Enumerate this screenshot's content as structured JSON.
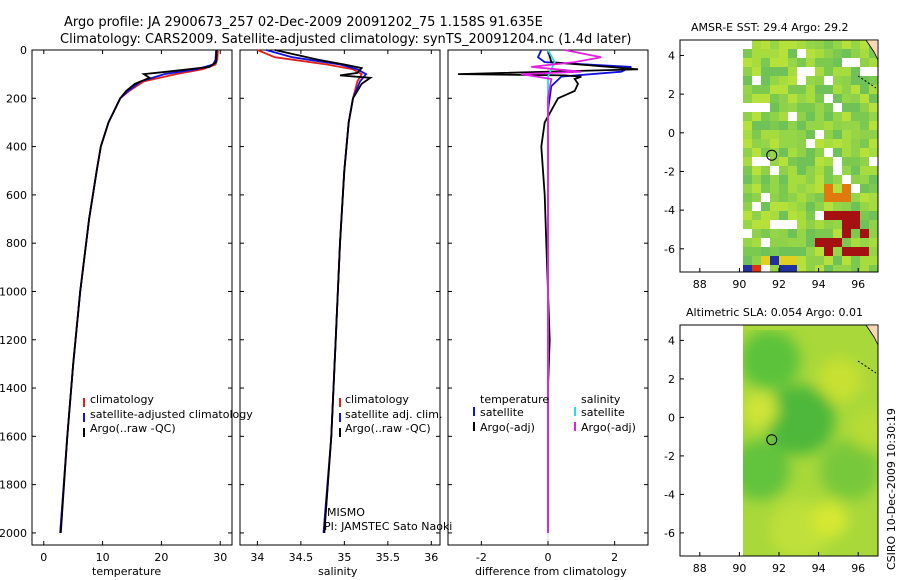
{
  "title_line1": "Argo profile: JA 2900673_257 02-Dec-2009 20091202_75 1.158S 91.635E",
  "title_line2": "Climatology: CARS2009. Satellite-adjusted climatology: synTS_20091204.nc (1.4d later)",
  "credit": "CSIRO 10-Dec-2009 10:30:19",
  "project_label": "MISMO",
  "pi_label": "PI: JAMSTEC Sato Naoki",
  "colors": {
    "red": "#e0201b",
    "blue": "#1010e0",
    "black": "#000000",
    "cyan": "#20e0f0",
    "magenta": "#e020e0",
    "land": "#f7d7b5"
  },
  "depth_ticks": [
    "0",
    "200",
    "400",
    "600",
    "800",
    "1000",
    "1200",
    "1400",
    "1600",
    "1800",
    "2000"
  ],
  "chart_data": [
    {
      "type": "line",
      "id": "temperature",
      "xlabel": "temperature",
      "ylabel": "",
      "xlim": [
        -2,
        32
      ],
      "ylim": [
        2050,
        0
      ],
      "xticks": [
        "0",
        "10",
        "20",
        "30"
      ],
      "legend": [
        "climatology",
        "satellite-adjusted climatology",
        "Argo(..raw -QC)"
      ],
      "series": [
        {
          "name": "climatology",
          "color": "red",
          "depth": [
            0,
            40,
            60,
            80,
            100,
            130,
            170,
            200,
            250,
            300,
            400,
            500,
            700,
            1000,
            1300,
            1600,
            2000
          ],
          "values": [
            29.6,
            29.5,
            29.2,
            27,
            22.5,
            17,
            14.5,
            13,
            12,
            11,
            9.7,
            9,
            7.7,
            6.2,
            5,
            4,
            2.8
          ]
        },
        {
          "name": "satellite-adjusted climatology",
          "color": "blue",
          "depth": [
            0,
            40,
            60,
            80,
            100,
            130,
            170,
            200,
            250,
            300,
            400,
            500,
            700,
            1000,
            1300,
            1600,
            2000
          ],
          "values": [
            29.3,
            29.2,
            28.8,
            26,
            20.5,
            16.5,
            14.3,
            13,
            12,
            11,
            9.7,
            9,
            7.7,
            6.2,
            5,
            4,
            2.8
          ]
        },
        {
          "name": "Argo(..raw -QC)",
          "color": "black",
          "depth": [
            0,
            50,
            70,
            90,
            100,
            115,
            140,
            170,
            200,
            250,
            300,
            400,
            500,
            700,
            1000,
            1300,
            1600,
            2000
          ],
          "values": [
            29.4,
            29.3,
            28.2,
            21,
            17,
            18,
            15.5,
            14,
            13,
            12,
            11,
            9.7,
            9,
            7.7,
            6.2,
            5,
            4,
            2.9
          ]
        }
      ]
    },
    {
      "type": "line",
      "id": "salinity",
      "xlabel": "salinity",
      "ylabel": "",
      "xlim": [
        33.8,
        36.1
      ],
      "ylim": [
        2050,
        0
      ],
      "xticks": [
        "34",
        "34.5",
        "35",
        "35.5",
        "36"
      ],
      "legend": [
        "climatology",
        "satellite adj. clim.",
        "Argo(..raw -QC)"
      ],
      "series": [
        {
          "name": "climatology",
          "color": "red",
          "depth": [
            0,
            30,
            60,
            80,
            100,
            130,
            200,
            300,
            500,
            800,
            1200,
            1600,
            2000
          ],
          "values": [
            34.0,
            34.2,
            34.8,
            35.1,
            35.2,
            35.15,
            35.1,
            35.05,
            35.0,
            34.95,
            34.9,
            34.85,
            34.77
          ]
        },
        {
          "name": "satellite adj. clim.",
          "color": "blue",
          "depth": [
            0,
            30,
            60,
            80,
            100,
            130,
            200,
            300,
            500,
            800,
            1200,
            1600,
            2000
          ],
          "values": [
            34.1,
            34.4,
            34.95,
            35.15,
            35.25,
            35.18,
            35.1,
            35.05,
            35.0,
            34.95,
            34.9,
            34.85,
            34.76
          ]
        },
        {
          "name": "Argo(..raw -QC)",
          "color": "black",
          "depth": [
            0,
            40,
            60,
            75,
            95,
            105,
            115,
            140,
            200,
            300,
            500,
            800,
            1200,
            1600,
            2000
          ],
          "values": [
            34.2,
            34.7,
            35.0,
            35.2,
            35.15,
            34.95,
            35.3,
            35.2,
            35.1,
            35.05,
            35.0,
            34.95,
            34.9,
            34.85,
            34.77
          ]
        }
      ]
    },
    {
      "type": "line",
      "id": "difference",
      "xlabel": "difference from climatology",
      "ylabel": "",
      "xlim": [
        -3,
        3
      ],
      "ylim": [
        2050,
        0
      ],
      "xticks": [
        "-2",
        "0",
        "2"
      ],
      "legend_left_title": "temperature",
      "legend_right_title": "salinity",
      "legend_left": [
        "satellite",
        "Argo(-adj)"
      ],
      "legend_right": [
        "satellite",
        "Argo(-adj)"
      ],
      "series": [
        {
          "name": "temperature satellite",
          "color": "blue",
          "depth": [
            0,
            30,
            50,
            70,
            90,
            110,
            150,
            250,
            500,
            1000,
            1500,
            2000
          ],
          "values": [
            -0.2,
            -0.3,
            -0.1,
            2.5,
            2.2,
            0.4,
            0.1,
            0,
            0,
            0,
            0,
            0
          ]
        },
        {
          "name": "temperature Argo(-adj)",
          "color": "black",
          "depth": [
            0,
            50,
            80,
            100,
            105,
            110,
            120,
            140,
            170,
            200,
            300,
            400,
            600,
            800,
            1000,
            1200,
            1400,
            1500,
            2000
          ],
          "values": [
            0,
            0.1,
            2.7,
            -2.7,
            0.5,
            1.0,
            0.8,
            0.9,
            0.8,
            0.3,
            -0.1,
            -0.2,
            -0.1,
            -0.05,
            0,
            0.05,
            0,
            0,
            0
          ]
        },
        {
          "name": "salinity satellite",
          "color": "cyan",
          "depth": [
            0,
            50,
            80,
            110,
            200,
            500,
            1000,
            1500,
            2000
          ],
          "values": [
            0,
            0.2,
            0.1,
            0,
            0,
            0,
            0,
            0,
            0
          ]
        },
        {
          "name": "salinity Argo(-adj)",
          "color": "magenta",
          "depth": [
            0,
            30,
            50,
            70,
            90,
            100,
            120,
            200,
            500,
            1000,
            1500,
            2000
          ],
          "values": [
            0.5,
            1.6,
            0.8,
            -0.5,
            1.0,
            -0.8,
            0.1,
            0,
            0,
            0,
            0,
            0
          ]
        }
      ]
    },
    {
      "type": "heatmap",
      "id": "sst_map",
      "title": "AMSR-E SST: 29.4  Argo: 29.2",
      "xlim": [
        87,
        97
      ],
      "ylim": [
        -7.2,
        4.8
      ],
      "xticks": [
        "88",
        "90",
        "92",
        "94",
        "96"
      ],
      "yticks": [
        "4",
        "2",
        "0",
        "-2",
        "-4",
        "-6"
      ],
      "argo_position": [
        91.635,
        -1.158
      ]
    },
    {
      "type": "heatmap",
      "id": "sla_map",
      "title": "Altimetric SLA: 0.054  Argo: 0.01",
      "xlim": [
        87,
        97
      ],
      "ylim": [
        -7.2,
        4.8
      ],
      "xticks": [
        "88",
        "90",
        "92",
        "94",
        "96"
      ],
      "yticks": [
        "4",
        "2",
        "0",
        "-2",
        "-4",
        "-6"
      ],
      "argo_position": [
        91.635,
        -1.158
      ]
    }
  ]
}
